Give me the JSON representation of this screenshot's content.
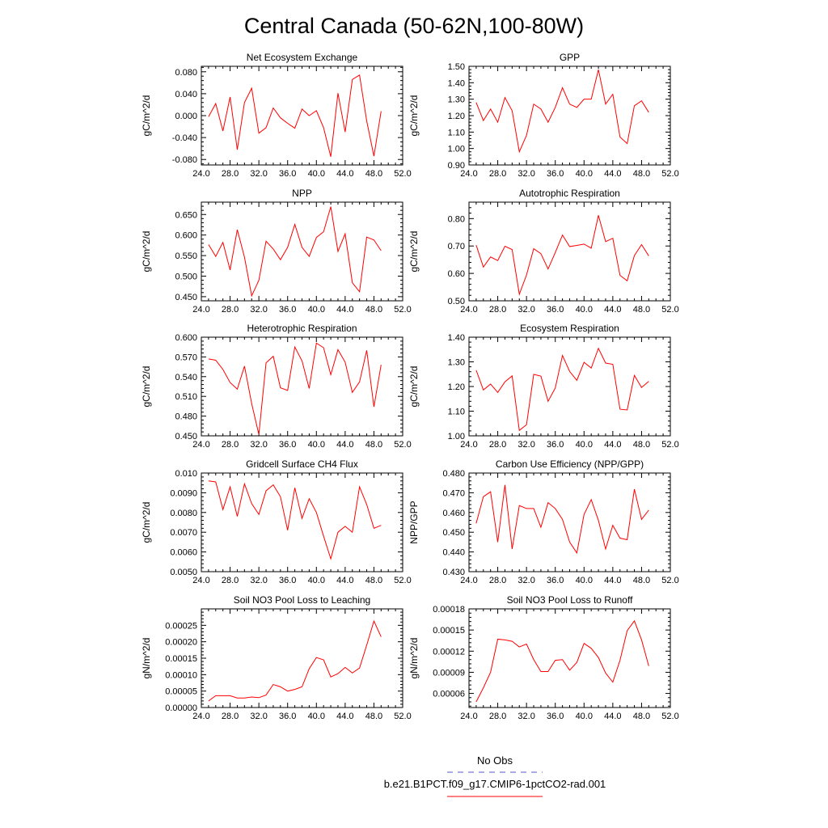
{
  "title": "Central Canada (50-62N,100-80W)",
  "colors": {
    "series": "#ff0000",
    "obs": "#5555cc",
    "axes": "#000000"
  },
  "legend": {
    "entries": [
      {
        "label": "No Obs",
        "style": "dashed",
        "color": "#5555cc"
      },
      {
        "label": "b.e21.B1PCT.f09_g17.CMIP6-1pctCO2-rad.001",
        "style": "solid",
        "color": "#ff0000"
      }
    ]
  },
  "chart_data": [
    {
      "type": "line",
      "title": "Net Ecosystem Exchange",
      "xlabel": "",
      "ylabel": "gC/m^2/d",
      "xlim": [
        24,
        52
      ],
      "ylim": [
        -0.09,
        0.09
      ],
      "xticks": [
        "24.0",
        "28.0",
        "32.0",
        "36.0",
        "40.0",
        "44.0",
        "48.0",
        "52.0"
      ],
      "yticks": [
        "-0.080",
        "-0.040",
        "0.000",
        "0.040",
        "0.080"
      ],
      "x": [
        25,
        26,
        27,
        28,
        29,
        30,
        31,
        32,
        33,
        34,
        35,
        36,
        37,
        38,
        39,
        40,
        41,
        42,
        43,
        44,
        45,
        46,
        47,
        48,
        49
      ],
      "series": [
        {
          "name": "b.e21.B1PCT.f09_g17.CMIP6-1pctCO2-rad.001",
          "values": [
            -0.002,
            0.022,
            -0.028,
            0.034,
            -0.062,
            0.024,
            0.05,
            -0.032,
            -0.022,
            0.014,
            -0.004,
            -0.014,
            -0.023,
            0.012,
            0.0,
            0.009,
            -0.022,
            -0.075,
            0.041,
            -0.03,
            0.066,
            0.074,
            -0.01,
            -0.074,
            0.008
          ]
        }
      ]
    },
    {
      "type": "line",
      "title": "GPP",
      "xlabel": "",
      "ylabel": "gC/m^2/d",
      "xlim": [
        24,
        52
      ],
      "ylim": [
        0.9,
        1.5
      ],
      "xticks": [
        "24.0",
        "28.0",
        "32.0",
        "36.0",
        "40.0",
        "44.0",
        "48.0",
        "52.0"
      ],
      "yticks": [
        "0.90",
        "1.00",
        "1.10",
        "1.20",
        "1.30",
        "1.40",
        "1.50"
      ],
      "x": [
        25,
        26,
        27,
        28,
        29,
        30,
        31,
        32,
        33,
        34,
        35,
        36,
        37,
        38,
        39,
        40,
        41,
        42,
        43,
        44,
        45,
        46,
        47,
        48,
        49
      ],
      "series": [
        {
          "name": "b.e21.B1PCT.f09_g17.CMIP6-1pctCO2-rad.001",
          "values": [
            1.28,
            1.17,
            1.24,
            1.16,
            1.31,
            1.23,
            0.98,
            1.08,
            1.27,
            1.24,
            1.16,
            1.25,
            1.37,
            1.27,
            1.25,
            1.3,
            1.3,
            1.48,
            1.27,
            1.33,
            1.07,
            1.03,
            1.26,
            1.29,
            1.22
          ]
        }
      ]
    },
    {
      "type": "line",
      "title": "NPP",
      "xlabel": "",
      "ylabel": "gC/m^2/d",
      "xlim": [
        24,
        52
      ],
      "ylim": [
        0.44,
        0.68
      ],
      "xticks": [
        "24.0",
        "28.0",
        "32.0",
        "36.0",
        "40.0",
        "44.0",
        "48.0",
        "52.0"
      ],
      "yticks": [
        "0.450",
        "0.500",
        "0.550",
        "0.600",
        "0.650"
      ],
      "x": [
        25,
        26,
        27,
        28,
        29,
        30,
        31,
        32,
        33,
        34,
        35,
        36,
        37,
        38,
        39,
        40,
        41,
        42,
        43,
        44,
        45,
        46,
        47,
        48,
        49
      ],
      "series": [
        {
          "name": "b.e21.B1PCT.f09_g17.CMIP6-1pctCO2-rad.001",
          "values": [
            0.577,
            0.548,
            0.582,
            0.515,
            0.613,
            0.546,
            0.452,
            0.49,
            0.585,
            0.566,
            0.54,
            0.57,
            0.626,
            0.57,
            0.548,
            0.594,
            0.608,
            0.669,
            0.56,
            0.603,
            0.484,
            0.462,
            0.595,
            0.588,
            0.562
          ]
        }
      ]
    },
    {
      "type": "line",
      "title": "Autotrophic Respiration",
      "xlabel": "",
      "ylabel": "gC/m^2/d",
      "xlim": [
        24,
        52
      ],
      "ylim": [
        0.5,
        0.86
      ],
      "xticks": [
        "24.0",
        "28.0",
        "32.0",
        "36.0",
        "40.0",
        "44.0",
        "48.0",
        "52.0"
      ],
      "yticks": [
        "0.50",
        "0.60",
        "0.70",
        "0.80"
      ],
      "x": [
        25,
        26,
        27,
        28,
        29,
        30,
        31,
        32,
        33,
        34,
        35,
        36,
        37,
        38,
        39,
        40,
        41,
        42,
        43,
        44,
        45,
        46,
        47,
        48,
        49
      ],
      "series": [
        {
          "name": "b.e21.B1PCT.f09_g17.CMIP6-1pctCO2-rad.001",
          "values": [
            0.703,
            0.623,
            0.66,
            0.647,
            0.699,
            0.687,
            0.524,
            0.594,
            0.69,
            0.672,
            0.616,
            0.676,
            0.74,
            0.698,
            0.702,
            0.707,
            0.692,
            0.812,
            0.716,
            0.728,
            0.593,
            0.573,
            0.665,
            0.705,
            0.664
          ]
        }
      ]
    },
    {
      "type": "line",
      "title": "Heterotrophic Respiration",
      "xlabel": "",
      "ylabel": "gC/m^2/d",
      "xlim": [
        24,
        52
      ],
      "ylim": [
        0.45,
        0.6
      ],
      "xticks": [
        "24.0",
        "28.0",
        "32.0",
        "36.0",
        "40.0",
        "44.0",
        "48.0",
        "52.0"
      ],
      "yticks": [
        "0.450",
        "0.480",
        "0.510",
        "0.540",
        "0.570",
        "0.600"
      ],
      "x": [
        25,
        26,
        27,
        28,
        29,
        30,
        31,
        32,
        33,
        34,
        35,
        36,
        37,
        38,
        39,
        40,
        41,
        42,
        43,
        44,
        45,
        46,
        47,
        48,
        49
      ],
      "series": [
        {
          "name": "b.e21.B1PCT.f09_g17.CMIP6-1pctCO2-rad.001",
          "values": [
            0.567,
            0.565,
            0.551,
            0.531,
            0.521,
            0.556,
            0.499,
            0.452,
            0.561,
            0.571,
            0.523,
            0.519,
            0.585,
            0.564,
            0.522,
            0.591,
            0.584,
            0.543,
            0.581,
            0.562,
            0.516,
            0.532,
            0.58,
            0.494,
            0.558
          ]
        }
      ]
    },
    {
      "type": "line",
      "title": "Ecosystem Respiration",
      "xlabel": "",
      "ylabel": "gC/m^2/d",
      "xlim": [
        24,
        52
      ],
      "ylim": [
        1.0,
        1.4
      ],
      "xticks": [
        "24.0",
        "28.0",
        "32.0",
        "36.0",
        "40.0",
        "44.0",
        "48.0",
        "52.0"
      ],
      "yticks": [
        "1.00",
        "1.10",
        "1.20",
        "1.30",
        "1.40"
      ],
      "x": [
        25,
        26,
        27,
        28,
        29,
        30,
        31,
        32,
        33,
        34,
        35,
        36,
        37,
        38,
        39,
        40,
        41,
        42,
        43,
        44,
        45,
        46,
        47,
        48,
        49
      ],
      "series": [
        {
          "name": "b.e21.B1PCT.f09_g17.CMIP6-1pctCO2-rad.001",
          "values": [
            1.266,
            1.186,
            1.21,
            1.176,
            1.219,
            1.243,
            1.022,
            1.045,
            1.249,
            1.242,
            1.14,
            1.194,
            1.326,
            1.261,
            1.225,
            1.298,
            1.275,
            1.355,
            1.295,
            1.29,
            1.108,
            1.105,
            1.245,
            1.196,
            1.221
          ]
        }
      ]
    },
    {
      "type": "line",
      "title": "Gridcell Surface CH4 Flux",
      "xlabel": "",
      "ylabel": "gC/m^2/d",
      "xlim": [
        24,
        52
      ],
      "ylim": [
        0.005,
        0.01
      ],
      "xticks": [
        "24.0",
        "28.0",
        "32.0",
        "36.0",
        "40.0",
        "44.0",
        "48.0",
        "52.0"
      ],
      "yticks": [
        "0.0050",
        "0.0060",
        "0.0070",
        "0.0080",
        "0.0090",
        "0.010"
      ],
      "x": [
        25,
        26,
        27,
        28,
        29,
        30,
        31,
        32,
        33,
        34,
        35,
        36,
        37,
        38,
        39,
        40,
        41,
        42,
        43,
        44,
        45,
        46,
        47,
        48,
        49
      ],
      "series": [
        {
          "name": "b.e21.B1PCT.f09_g17.CMIP6-1pctCO2-rad.001",
          "values": [
            0.0096,
            0.00955,
            0.00815,
            0.0093,
            0.0078,
            0.00945,
            0.00845,
            0.0079,
            0.0091,
            0.0094,
            0.0088,
            0.0071,
            0.00925,
            0.0077,
            0.0087,
            0.008,
            0.0068,
            0.00565,
            0.007,
            0.0073,
            0.007,
            0.0093,
            0.0084,
            0.0072,
            0.00735
          ]
        }
      ]
    },
    {
      "type": "line",
      "title": "Carbon Use Efficiency (NPP/GPP)",
      "xlabel": "",
      "ylabel": "NPP/GPP",
      "xlim": [
        24,
        52
      ],
      "ylim": [
        0.43,
        0.48
      ],
      "xticks": [
        "24.0",
        "28.0",
        "32.0",
        "36.0",
        "40.0",
        "44.0",
        "48.0",
        "52.0"
      ],
      "yticks": [
        "0.430",
        "0.440",
        "0.450",
        "0.460",
        "0.470",
        "0.480"
      ],
      "x": [
        25,
        26,
        27,
        28,
        29,
        30,
        31,
        32,
        33,
        34,
        35,
        36,
        37,
        38,
        39,
        40,
        41,
        42,
        43,
        44,
        45,
        46,
        47,
        48,
        49
      ],
      "series": [
        {
          "name": "b.e21.B1PCT.f09_g17.CMIP6-1pctCO2-rad.001",
          "values": [
            0.4545,
            0.468,
            0.4705,
            0.445,
            0.474,
            0.4415,
            0.4635,
            0.462,
            0.462,
            0.4525,
            0.465,
            0.462,
            0.4565,
            0.445,
            0.4395,
            0.459,
            0.4665,
            0.456,
            0.4415,
            0.4535,
            0.447,
            0.4462,
            0.4718,
            0.4565,
            0.4612
          ]
        }
      ]
    },
    {
      "type": "line",
      "title": "Soil NO3 Pool Loss to Leaching",
      "xlabel": "",
      "ylabel": "gN/m^2/d",
      "xlim": [
        24,
        52
      ],
      "ylim": [
        0.0,
        0.0003
      ],
      "xticks": [
        "24.0",
        "28.0",
        "32.0",
        "36.0",
        "40.0",
        "44.0",
        "48.0",
        "52.0"
      ],
      "yticks": [
        "0.00000",
        "0.00005",
        "0.00010",
        "0.00015",
        "0.00020",
        "0.00025"
      ],
      "x": [
        25,
        26,
        27,
        28,
        29,
        30,
        31,
        32,
        33,
        34,
        35,
        36,
        37,
        38,
        39,
        40,
        41,
        42,
        43,
        44,
        45,
        46,
        47,
        48,
        49
      ],
      "series": [
        {
          "name": "b.e21.B1PCT.f09_g17.CMIP6-1pctCO2-rad.001",
          "values": [
            2e-05,
            3.6e-05,
            3.6e-05,
            3.6e-05,
            2.9e-05,
            2.9e-05,
            3.2e-05,
            3e-05,
            3.8e-05,
            7e-05,
            6.3e-05,
            5e-05,
            5.5e-05,
            6.3e-05,
            0.000118,
            0.000152,
            0.000145,
            9.3e-05,
            0.000103,
            0.000122,
            0.000105,
            0.00012,
            0.00019,
            0.000263,
            0.000215
          ]
        }
      ]
    },
    {
      "type": "line",
      "title": "Soil NO3 Pool Loss to Runoff",
      "xlabel": "",
      "ylabel": "gN/m^2/d",
      "xlim": [
        24,
        52
      ],
      "ylim": [
        4e-05,
        0.00018
      ],
      "xticks": [
        "24.0",
        "28.0",
        "32.0",
        "36.0",
        "40.0",
        "44.0",
        "48.0",
        "52.0"
      ],
      "yticks": [
        "0.00006",
        "0.00009",
        "0.00012",
        "0.00015",
        "0.00018"
      ],
      "x": [
        25,
        26,
        27,
        28,
        29,
        30,
        31,
        32,
        33,
        34,
        35,
        36,
        37,
        38,
        39,
        40,
        41,
        42,
        43,
        44,
        45,
        46,
        47,
        48,
        49
      ],
      "series": [
        {
          "name": "b.e21.B1PCT.f09_g17.CMIP6-1pctCO2-rad.001",
          "values": [
            4.8e-05,
            6.8e-05,
            9e-05,
            0.000137,
            0.000136,
            0.000134,
            0.000126,
            0.00013,
            0.000108,
            9.1e-05,
            9.1e-05,
            0.000107,
            0.000108,
            9.3e-05,
            0.000104,
            0.000131,
            0.000124,
            0.000111,
            8.9e-05,
            7.6e-05,
            0.000107,
            0.000149,
            0.000163,
            0.000136,
            9.9e-05
          ]
        }
      ]
    }
  ]
}
